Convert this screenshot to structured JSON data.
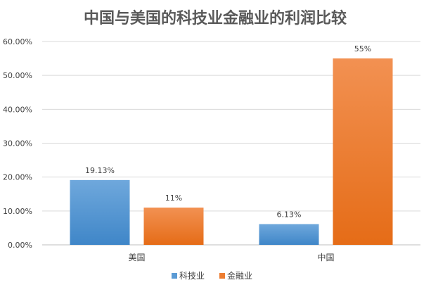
{
  "chart_data": {
    "type": "bar",
    "title": "中国与美国的科技业金融业的利润比较",
    "categories": [
      "美国",
      "中国"
    ],
    "series": [
      {
        "name": "科技业",
        "values": [
          19.13,
          6.13
        ],
        "labels": [
          "19.13%",
          "6.13%"
        ],
        "color": "#5b9bd5"
      },
      {
        "name": "金融业",
        "values": [
          11,
          55
        ],
        "labels": [
          "11%",
          "55%"
        ],
        "color": "#ed7d31"
      }
    ],
    "y_ticks": [
      "0.00%",
      "10.00%",
      "20.00%",
      "30.00%",
      "40.00%",
      "50.00%",
      "60.00%"
    ],
    "ylim": [
      0,
      60
    ],
    "grid": true,
    "legend": "bottom"
  }
}
